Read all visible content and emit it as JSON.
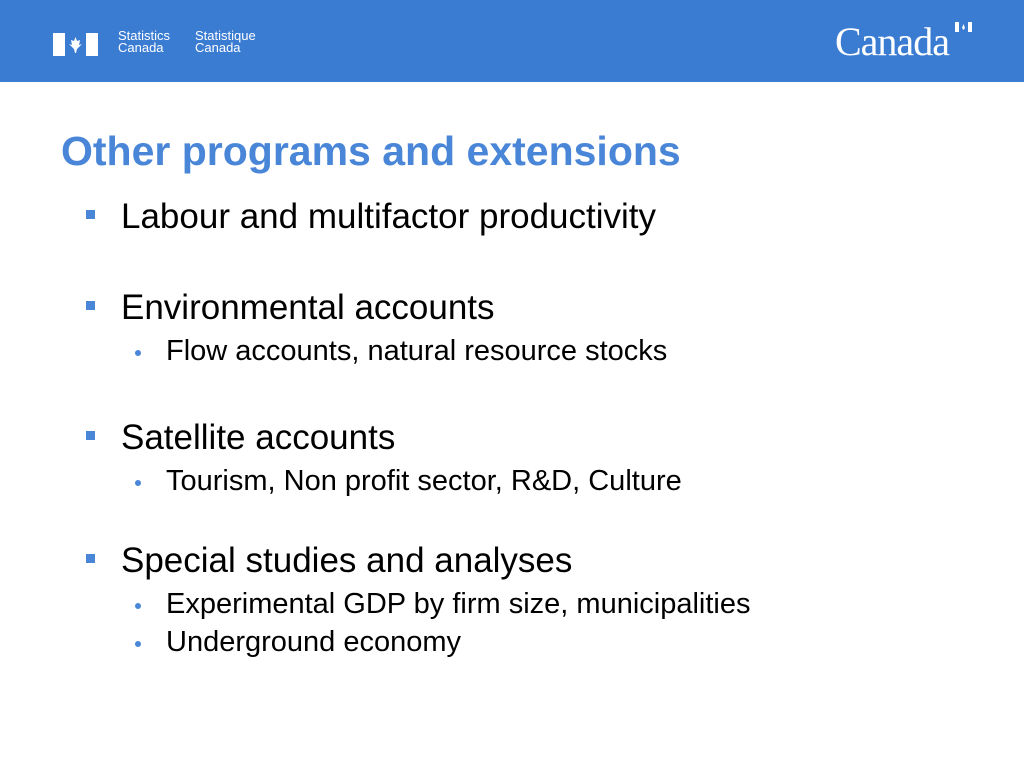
{
  "header": {
    "logo_en_1": "Statistics",
    "logo_en_2": "Canada",
    "logo_fr_1": "Statistique",
    "logo_fr_2": "Canada",
    "wordmark": "Canada"
  },
  "title": "Other programs and extensions",
  "colors": {
    "header": "#3b7cd3",
    "accent": "#4a86d8"
  },
  "items": [
    {
      "label": "Labour and multifactor productivity",
      "sub": []
    },
    {
      "label": "Environmental accounts",
      "sub": [
        "Flow accounts, natural resource stocks"
      ]
    },
    {
      "label": "Satellite accounts",
      "sub": [
        "Tourism, Non profit sector, R&D, Culture"
      ]
    },
    {
      "label": "Special studies and analyses",
      "sub": [
        "Experimental GDP by firm size, municipalities",
        "Underground economy"
      ]
    }
  ]
}
